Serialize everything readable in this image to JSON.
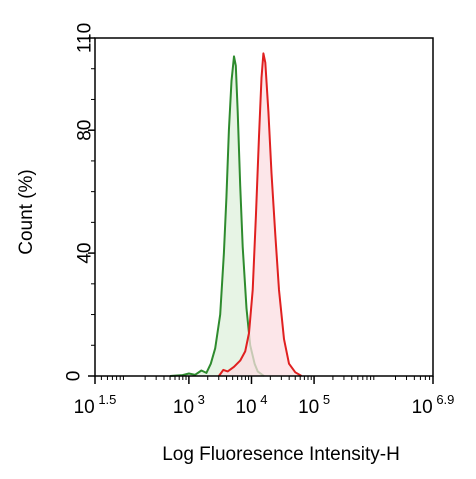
{
  "chart_data": {
    "type": "area",
    "xlabel": "Log Fluoresence Intensity-H",
    "ylabel": "Count  (%)",
    "x_scale": "log10",
    "xlim": [
      1.5,
      6.9
    ],
    "ylim": [
      0,
      110
    ],
    "grid": false,
    "x_ticks": [
      {
        "base": "10",
        "exp": "1.5",
        "value": 1.5
      },
      {
        "base": "10",
        "exp": "3",
        "value": 3
      },
      {
        "base": "10",
        "exp": "4",
        "value": 4
      },
      {
        "base": "10",
        "exp": "5",
        "value": 5
      },
      {
        "base": "10",
        "exp": "6.9",
        "value": 6.9
      }
    ],
    "y_ticks": [
      {
        "label": "0",
        "value": 0
      },
      {
        "label": "40",
        "value": 40
      },
      {
        "label": "80",
        "value": 80
      },
      {
        "label": "110",
        "value": 110
      }
    ],
    "series": [
      {
        "color": "#2e8b2e",
        "fill": "#dff0dc",
        "points": [
          [
            2.7,
            0
          ],
          [
            2.9,
            0.3
          ],
          [
            3.0,
            0.8
          ],
          [
            3.1,
            0.4
          ],
          [
            3.2,
            1.8
          ],
          [
            3.28,
            1.0
          ],
          [
            3.35,
            4
          ],
          [
            3.42,
            9
          ],
          [
            3.5,
            20
          ],
          [
            3.56,
            40
          ],
          [
            3.6,
            58
          ],
          [
            3.64,
            80
          ],
          [
            3.68,
            96
          ],
          [
            3.72,
            104
          ],
          [
            3.75,
            101
          ],
          [
            3.78,
            86
          ],
          [
            3.82,
            62
          ],
          [
            3.86,
            42
          ],
          [
            3.92,
            22
          ],
          [
            3.98,
            10
          ],
          [
            4.05,
            4
          ],
          [
            4.1,
            1.5
          ],
          [
            4.2,
            0
          ]
        ]
      },
      {
        "color": "#e02020",
        "fill": "#fbdde2",
        "points": [
          [
            3.48,
            0
          ],
          [
            3.55,
            2
          ],
          [
            3.62,
            1.5
          ],
          [
            3.72,
            3
          ],
          [
            3.82,
            5
          ],
          [
            3.9,
            8
          ],
          [
            3.96,
            14
          ],
          [
            4.02,
            28
          ],
          [
            4.07,
            52
          ],
          [
            4.12,
            78
          ],
          [
            4.16,
            97
          ],
          [
            4.19,
            105
          ],
          [
            4.22,
            102
          ],
          [
            4.27,
            86
          ],
          [
            4.32,
            66
          ],
          [
            4.38,
            46
          ],
          [
            4.44,
            28
          ],
          [
            4.52,
            12
          ],
          [
            4.6,
            4
          ],
          [
            4.7,
            1.2
          ],
          [
            4.8,
            0
          ]
        ]
      }
    ]
  }
}
